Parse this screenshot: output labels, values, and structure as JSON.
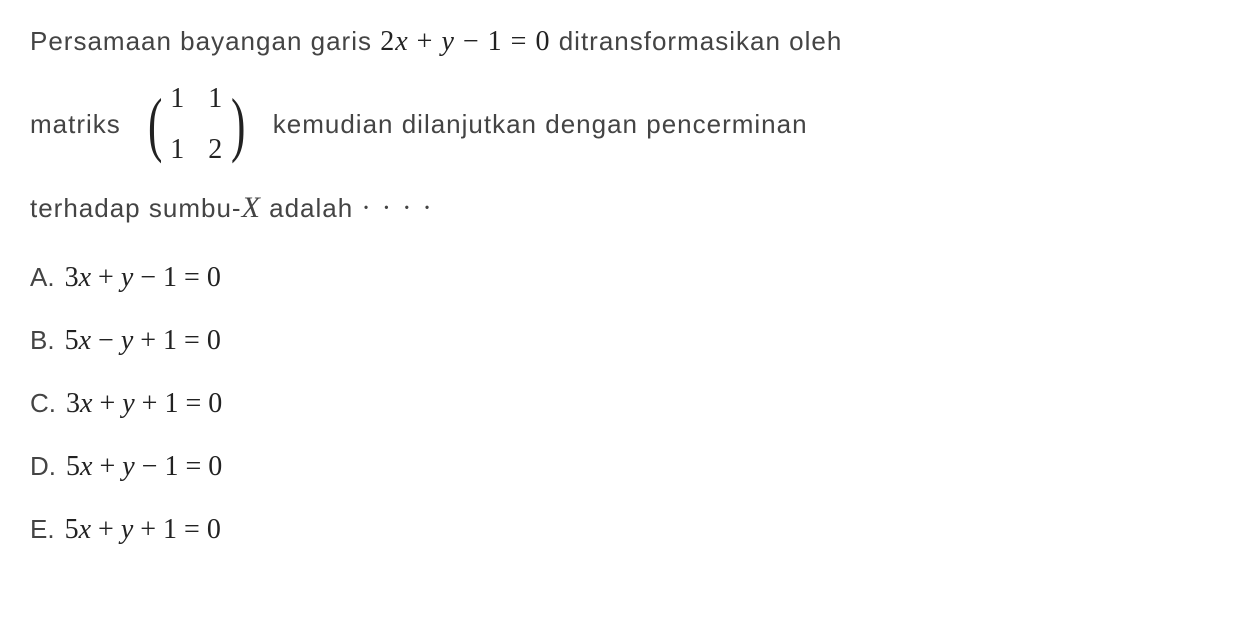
{
  "question": {
    "line1_part1": "Persamaan  bayangan  garis  ",
    "line1_equation": "2x + y − 1 = 0",
    "line1_part2": "  ditransformasikan  oleh",
    "line2_part1": "matriks",
    "matrix": {
      "r1c1": "1",
      "r1c2": "1",
      "r2c1": "1",
      "r2c2": "2"
    },
    "line2_part2": "kemudian  dilanjutkan  dengan  pencerminan",
    "line3_part1": "terhadap  sumbu-",
    "line3_var": "X",
    "line3_part2": " adalah ",
    "dots": "· · · ·"
  },
  "options": [
    {
      "label": "A.",
      "equation": "3x + y − 1 = 0"
    },
    {
      "label": "B.",
      "equation": "5x − y + 1 = 0"
    },
    {
      "label": "C.",
      "equation": "3x + y + 1 = 0"
    },
    {
      "label": "D.",
      "equation": "5x + y − 1 = 0"
    },
    {
      "label": "E.",
      "equation": "5x + y + 1 = 0"
    }
  ],
  "styling": {
    "background_color": "#ffffff",
    "text_color": "#444444",
    "math_color": "#222222",
    "question_fontsize": 26,
    "math_fontsize": 28,
    "matrix_paren_fontsize": 72,
    "option_fontsize": 26,
    "font_family_text": "Arial, Helvetica, sans-serif",
    "font_family_math": "Times New Roman, Times, serif"
  }
}
